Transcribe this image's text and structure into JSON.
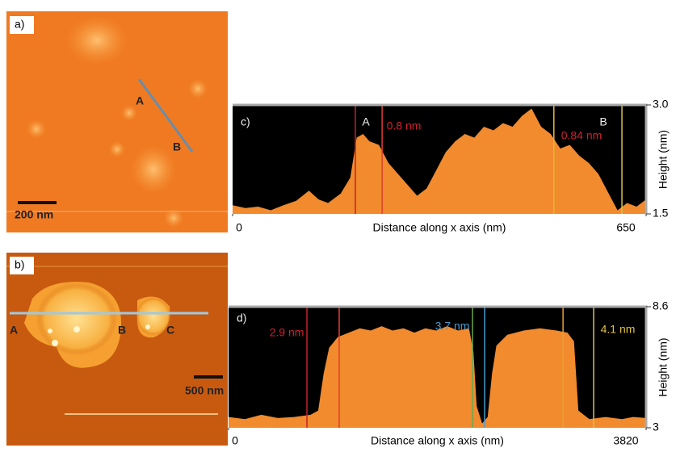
{
  "panels": [
    {
      "label": "a)",
      "points": [
        "A",
        "B"
      ],
      "scale_bar": "200 nm"
    },
    {
      "label": "b)",
      "points": [
        "A",
        "B",
        "C"
      ],
      "scale_bar": "500 nm"
    }
  ],
  "chart_data": [
    {
      "type": "area",
      "panel": "c)",
      "xlabel": "Distance along x axis (nm)",
      "ylabel": "Height (nm)",
      "color": "#f28a2e",
      "x": [
        0,
        20,
        40,
        60,
        80,
        100,
        120,
        135,
        150,
        170,
        185,
        195,
        205,
        215,
        230,
        245,
        260,
        275,
        290,
        305,
        320,
        335,
        350,
        365,
        380,
        395,
        410,
        425,
        440,
        455,
        470,
        485,
        500,
        515,
        530,
        545,
        560,
        575,
        590,
        605,
        620,
        635,
        650
      ],
      "values": [
        1.62,
        1.58,
        1.6,
        1.55,
        1.62,
        1.68,
        1.82,
        1.7,
        1.65,
        1.78,
        2.0,
        2.55,
        2.6,
        2.5,
        2.45,
        2.2,
        2.05,
        1.9,
        1.75,
        1.85,
        2.1,
        2.35,
        2.5,
        2.6,
        2.55,
        2.7,
        2.65,
        2.75,
        2.7,
        2.85,
        2.95,
        2.7,
        2.6,
        2.4,
        2.45,
        2.3,
        2.2,
        2.05,
        1.8,
        1.55,
        1.65,
        1.6,
        1.7
      ],
      "xlim": [
        0,
        650
      ],
      "xticks": [
        0,
        650
      ],
      "ylim": [
        1.5,
        3.0
      ],
      "yticks": [
        1.5,
        {
          "value": 3,
          "label": "3.0"
        }
      ],
      "markers": [
        {
          "x": 193,
          "color": "#c8202a"
        },
        {
          "x": 235,
          "color": "#e0402a"
        },
        {
          "x": 505,
          "color": "#e8b830"
        },
        {
          "x": 612,
          "color": "#d8c050"
        }
      ],
      "annotations": [
        "A",
        "0.8 nm",
        "B",
        "0.84 nm"
      ]
    },
    {
      "type": "area",
      "panel": "d)",
      "xlabel": "Distance along x axis (nm)",
      "ylabel": "Height (nm)",
      "color": "#f28a2e",
      "x": [
        0,
        150,
        300,
        450,
        600,
        750,
        820,
        870,
        920,
        1000,
        1100,
        1200,
        1300,
        1400,
        1500,
        1600,
        1700,
        1800,
        1900,
        2000,
        2100,
        2200,
        2240,
        2270,
        2320,
        2370,
        2410,
        2450,
        2550,
        2700,
        2850,
        3000,
        3100,
        3160,
        3200,
        3300,
        3450,
        3600,
        3700,
        3820
      ],
      "values": [
        3.5,
        3.4,
        3.6,
        3.45,
        3.5,
        3.6,
        3.8,
        5.5,
        6.7,
        7.2,
        7.4,
        7.6,
        7.5,
        7.7,
        7.5,
        7.6,
        7.4,
        7.6,
        7.5,
        7.7,
        7.5,
        7.6,
        6.5,
        4.0,
        3.2,
        3.5,
        5.5,
        6.8,
        7.3,
        7.5,
        7.6,
        7.5,
        7.4,
        7.0,
        3.8,
        3.4,
        3.5,
        3.4,
        3.5,
        3.45
      ],
      "xlim": [
        0,
        3820
      ],
      "xticks": [
        0,
        3820
      ],
      "ylim": [
        3,
        8.6
      ],
      "yticks": [
        3,
        8.6
      ],
      "markers": [
        {
          "x": 717,
          "color": "#c8202a"
        },
        {
          "x": 1012,
          "color": "#e0402a"
        },
        {
          "x": 2232,
          "color": "#6aa84f"
        },
        {
          "x": 2343,
          "color": "#4a9ad0"
        },
        {
          "x": 3060,
          "color": "#e8a030"
        },
        {
          "x": 3340,
          "color": "#d8c050"
        }
      ],
      "annotations": [
        "2.9 nm",
        "3.7 nm",
        "4.1 nm"
      ]
    }
  ]
}
